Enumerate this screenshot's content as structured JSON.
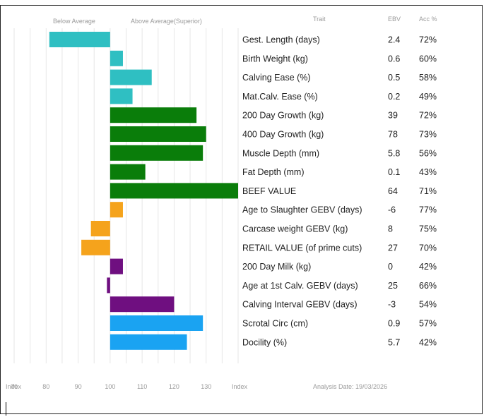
{
  "header": {
    "below_label": "Below Average",
    "above_label": "Above Average(Superior)",
    "trait_col": "Trait",
    "ebv_col": "EBV",
    "acc_col": "Acc %"
  },
  "footer": {
    "index_left": "Index",
    "index_right": "Index",
    "analysis_date": "Analysis Date: 19/03/2026"
  },
  "colors": {
    "teal": "#2fbfc2",
    "green": "#0a7d0a",
    "orange": "#f5a31c",
    "purple": "#6f0f80",
    "blue": "#1aa3f2"
  },
  "chart_data": {
    "type": "bar",
    "orientation": "horizontal",
    "x_ticks": [
      "70",
      "80",
      "90",
      "100",
      "110",
      "120",
      "130"
    ],
    "xlim": [
      70,
      140
    ],
    "baseline": 100,
    "grid": true,
    "rows": [
      {
        "trait": "Gest. Length (days)",
        "ebv": "2.4",
        "acc": "72%",
        "index": 81,
        "color": "teal"
      },
      {
        "trait": "Birth Weight (kg)",
        "ebv": "0.6",
        "acc": "60%",
        "index": 104,
        "color": "teal"
      },
      {
        "trait": "Calving Ease (%)",
        "ebv": "0.5",
        "acc": "58%",
        "index": 113,
        "color": "teal"
      },
      {
        "trait": "Mat.Calv. Ease (%)",
        "ebv": "0.2",
        "acc": "49%",
        "index": 107,
        "color": "teal"
      },
      {
        "trait": "200 Day Growth (kg)",
        "ebv": "39",
        "acc": "72%",
        "index": 127,
        "color": "green"
      },
      {
        "trait": "400 Day Growth (kg)",
        "ebv": "78",
        "acc": "73%",
        "index": 130,
        "color": "green"
      },
      {
        "trait": "Muscle Depth (mm)",
        "ebv": "5.8",
        "acc": "56%",
        "index": 129,
        "color": "green"
      },
      {
        "trait": "Fat Depth (mm)",
        "ebv": "0.1",
        "acc": "43%",
        "index": 111,
        "color": "green"
      },
      {
        "trait": "BEEF VALUE",
        "ebv": "64",
        "acc": "71%",
        "index": 140,
        "color": "green"
      },
      {
        "trait": "Age to Slaughter GEBV (days)",
        "ebv": "-6",
        "acc": "77%",
        "index": 104,
        "color": "orange"
      },
      {
        "trait": "Carcase weight GEBV (kg)",
        "ebv": "8",
        "acc": "75%",
        "index": 94,
        "color": "orange"
      },
      {
        "trait": "RETAIL VALUE (of prime cuts)",
        "ebv": "27",
        "acc": "70%",
        "index": 91,
        "color": "orange"
      },
      {
        "trait": "200 Day Milk (kg)",
        "ebv": "0",
        "acc": "42%",
        "index": 104,
        "color": "purple"
      },
      {
        "trait": "Age at 1st Calv. GEBV (days)",
        "ebv": "25",
        "acc": "66%",
        "index": 99,
        "color": "purple"
      },
      {
        "trait": "Calving Interval GEBV (days)",
        "ebv": "-3",
        "acc": "54%",
        "index": 120,
        "color": "purple"
      },
      {
        "trait": "Scrotal Circ (cm)",
        "ebv": "0.9",
        "acc": "57%",
        "index": 129,
        "color": "blue"
      },
      {
        "trait": "Docility (%)",
        "ebv": "5.7",
        "acc": "42%",
        "index": 124,
        "color": "blue"
      }
    ]
  }
}
